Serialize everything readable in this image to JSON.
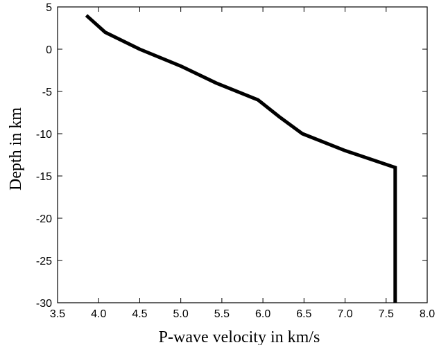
{
  "chart_data": {
    "type": "line",
    "title": "",
    "xlabel": "P-wave velocity in km/s",
    "ylabel": "Depth in km",
    "xlim": [
      3.5,
      8.0
    ],
    "ylim": [
      -30,
      5
    ],
    "grid": false,
    "legend": "none",
    "xticks": [
      3.5,
      4.0,
      4.5,
      5.0,
      5.5,
      6.0,
      6.5,
      7.0,
      7.5,
      8.0
    ],
    "xtick_labels": [
      "3.5",
      "4.0",
      "4.5",
      "5.0",
      "5.5",
      "6.0",
      "6.5",
      "7.0",
      "7.5",
      "8.0"
    ],
    "yticks": [
      5,
      0,
      -5,
      -10,
      -15,
      -20,
      -25,
      -30
    ],
    "ytick_labels": [
      "5",
      "0",
      "-5",
      "-10",
      "-15",
      "-20",
      "-25",
      "-30"
    ],
    "ytick_positions": [
      5,
      0,
      -5,
      -10,
      -15,
      -20,
      -25,
      -30
    ],
    "series": [
      {
        "x": [
          3.85,
          4.08,
          4.5,
          5.0,
          5.43,
          5.94,
          6.2,
          6.48,
          7.0,
          7.61,
          7.61
        ],
        "y": [
          4.0,
          2.0,
          0.0,
          -2.0,
          -4.0,
          -6.0,
          -8.0,
          -10.0,
          -12.0,
          -14.0,
          -30.0
        ],
        "color": "#000000"
      }
    ]
  }
}
